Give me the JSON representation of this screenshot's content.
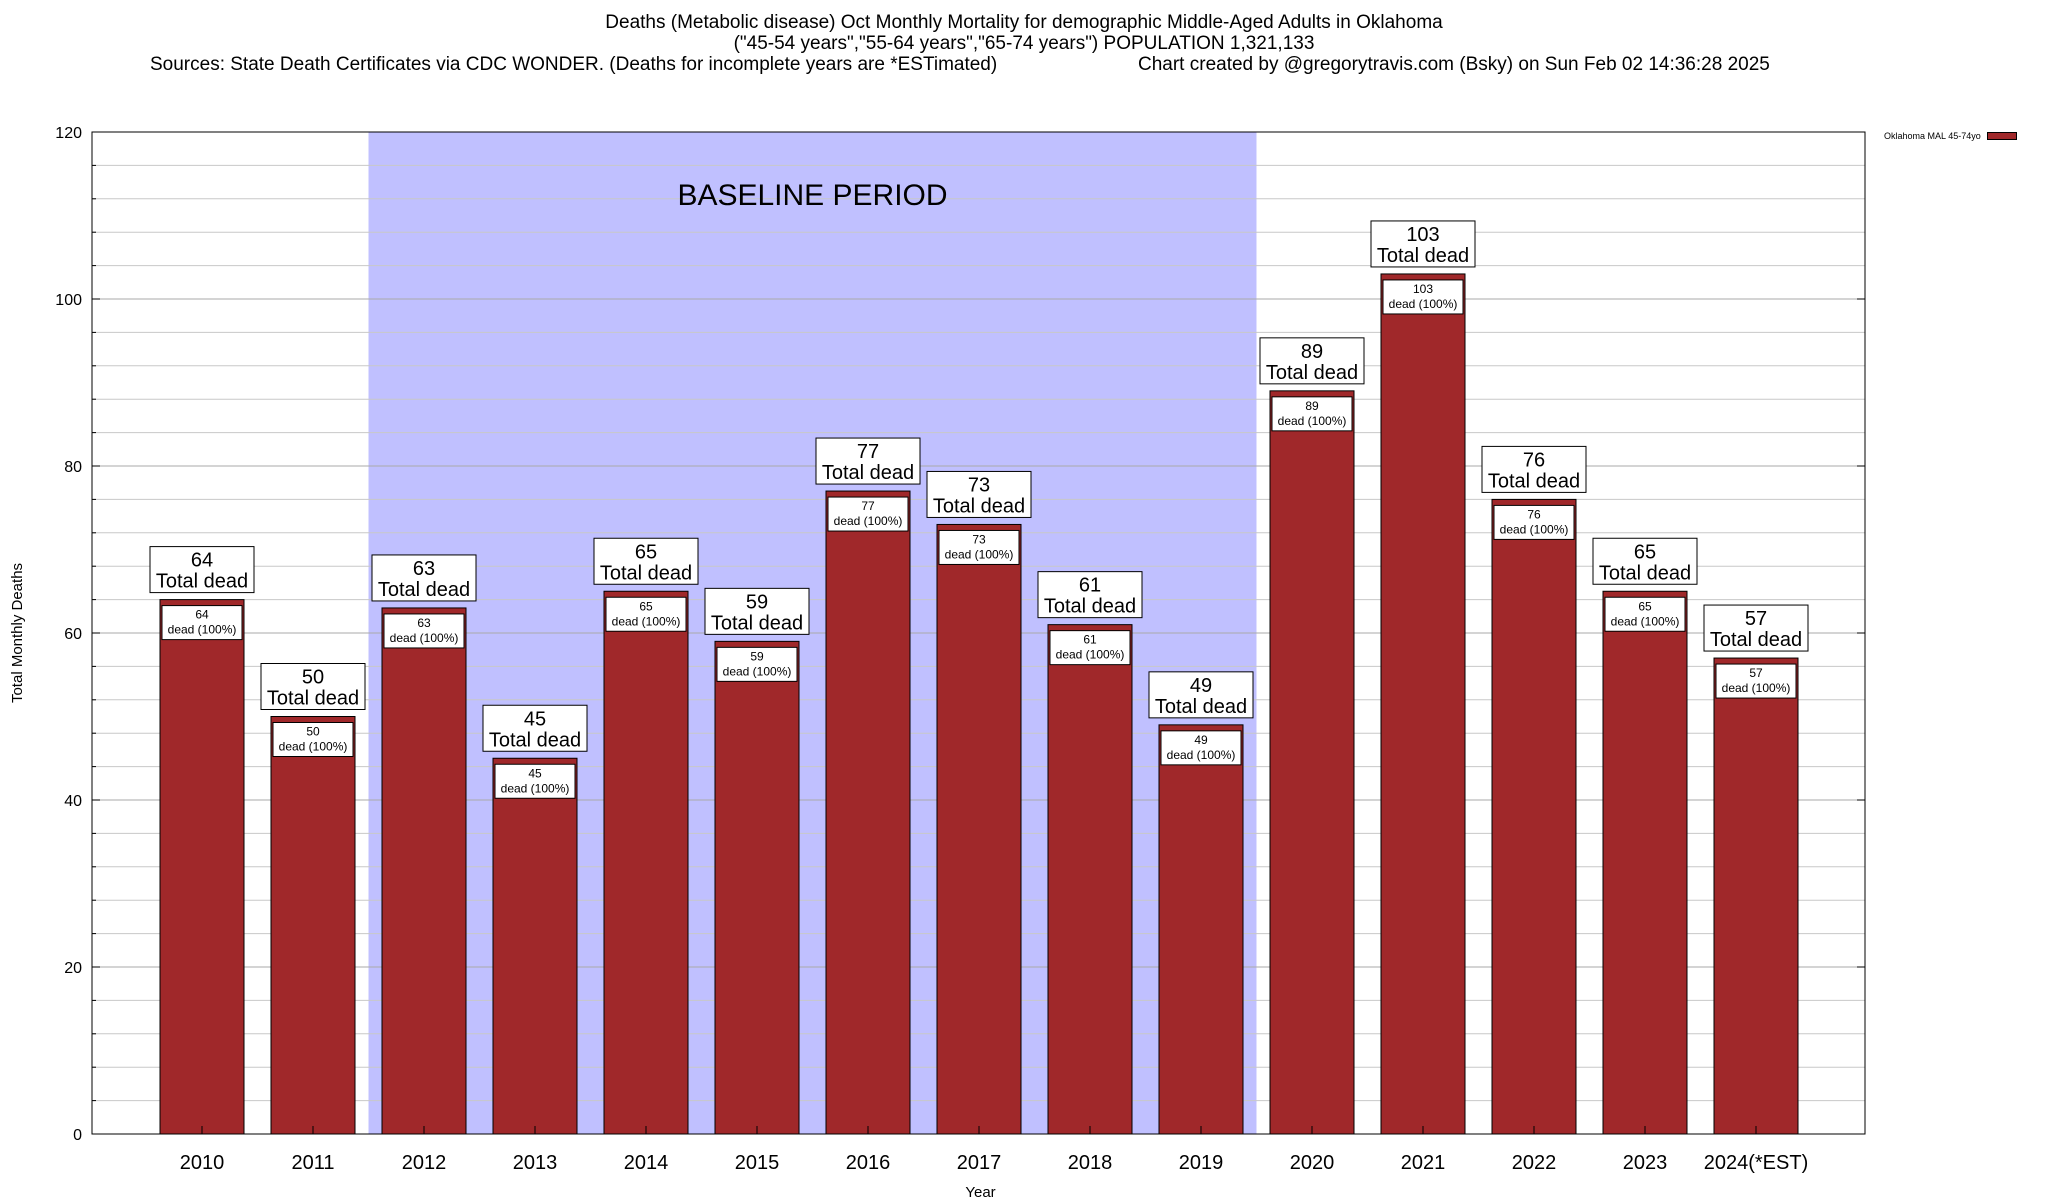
{
  "chart_data": {
    "type": "bar",
    "title": "Deaths (Metabolic disease) Oct Monthly Mortality for demographic Middle-Aged Adults in Oklahoma",
    "subtitle": "(\"45-54 years\",\"55-64 years\",\"65-74 years\") POPULATION 1,321,133",
    "source": "Sources: State Death Certificates via CDC WONDER. (Deaths for incomplete years are *ESTimated)",
    "credit": "Chart created by @gregorytravis.com (Bsky) on Sun Feb 02 14:36:28 2025",
    "xlabel": "Year",
    "ylabel": "Total Monthly Deaths",
    "ylim": [
      0,
      120
    ],
    "yticks": [
      0,
      20,
      40,
      60,
      80,
      100,
      120
    ],
    "grid": true,
    "categories": [
      "2010",
      "2011",
      "2012",
      "2013",
      "2014",
      "2015",
      "2016",
      "2017",
      "2018",
      "2019",
      "2020",
      "2021",
      "2022",
      "2023",
      "2024(*EST)"
    ],
    "series": [
      {
        "name": "Oklahoma MAL 45-74yo",
        "color": "#a0282a",
        "values": [
          64,
          50,
          63,
          45,
          65,
          59,
          77,
          73,
          61,
          49,
          89,
          103,
          76,
          65,
          57
        ]
      }
    ],
    "top_label_suffix": "Total dead",
    "inner_label_suffix": "dead (100%)",
    "baseline": {
      "label": "BASELINE PERIOD",
      "from": "2012",
      "to": "2019",
      "color": "#c0c0ff"
    },
    "legend_position": "top-right"
  }
}
